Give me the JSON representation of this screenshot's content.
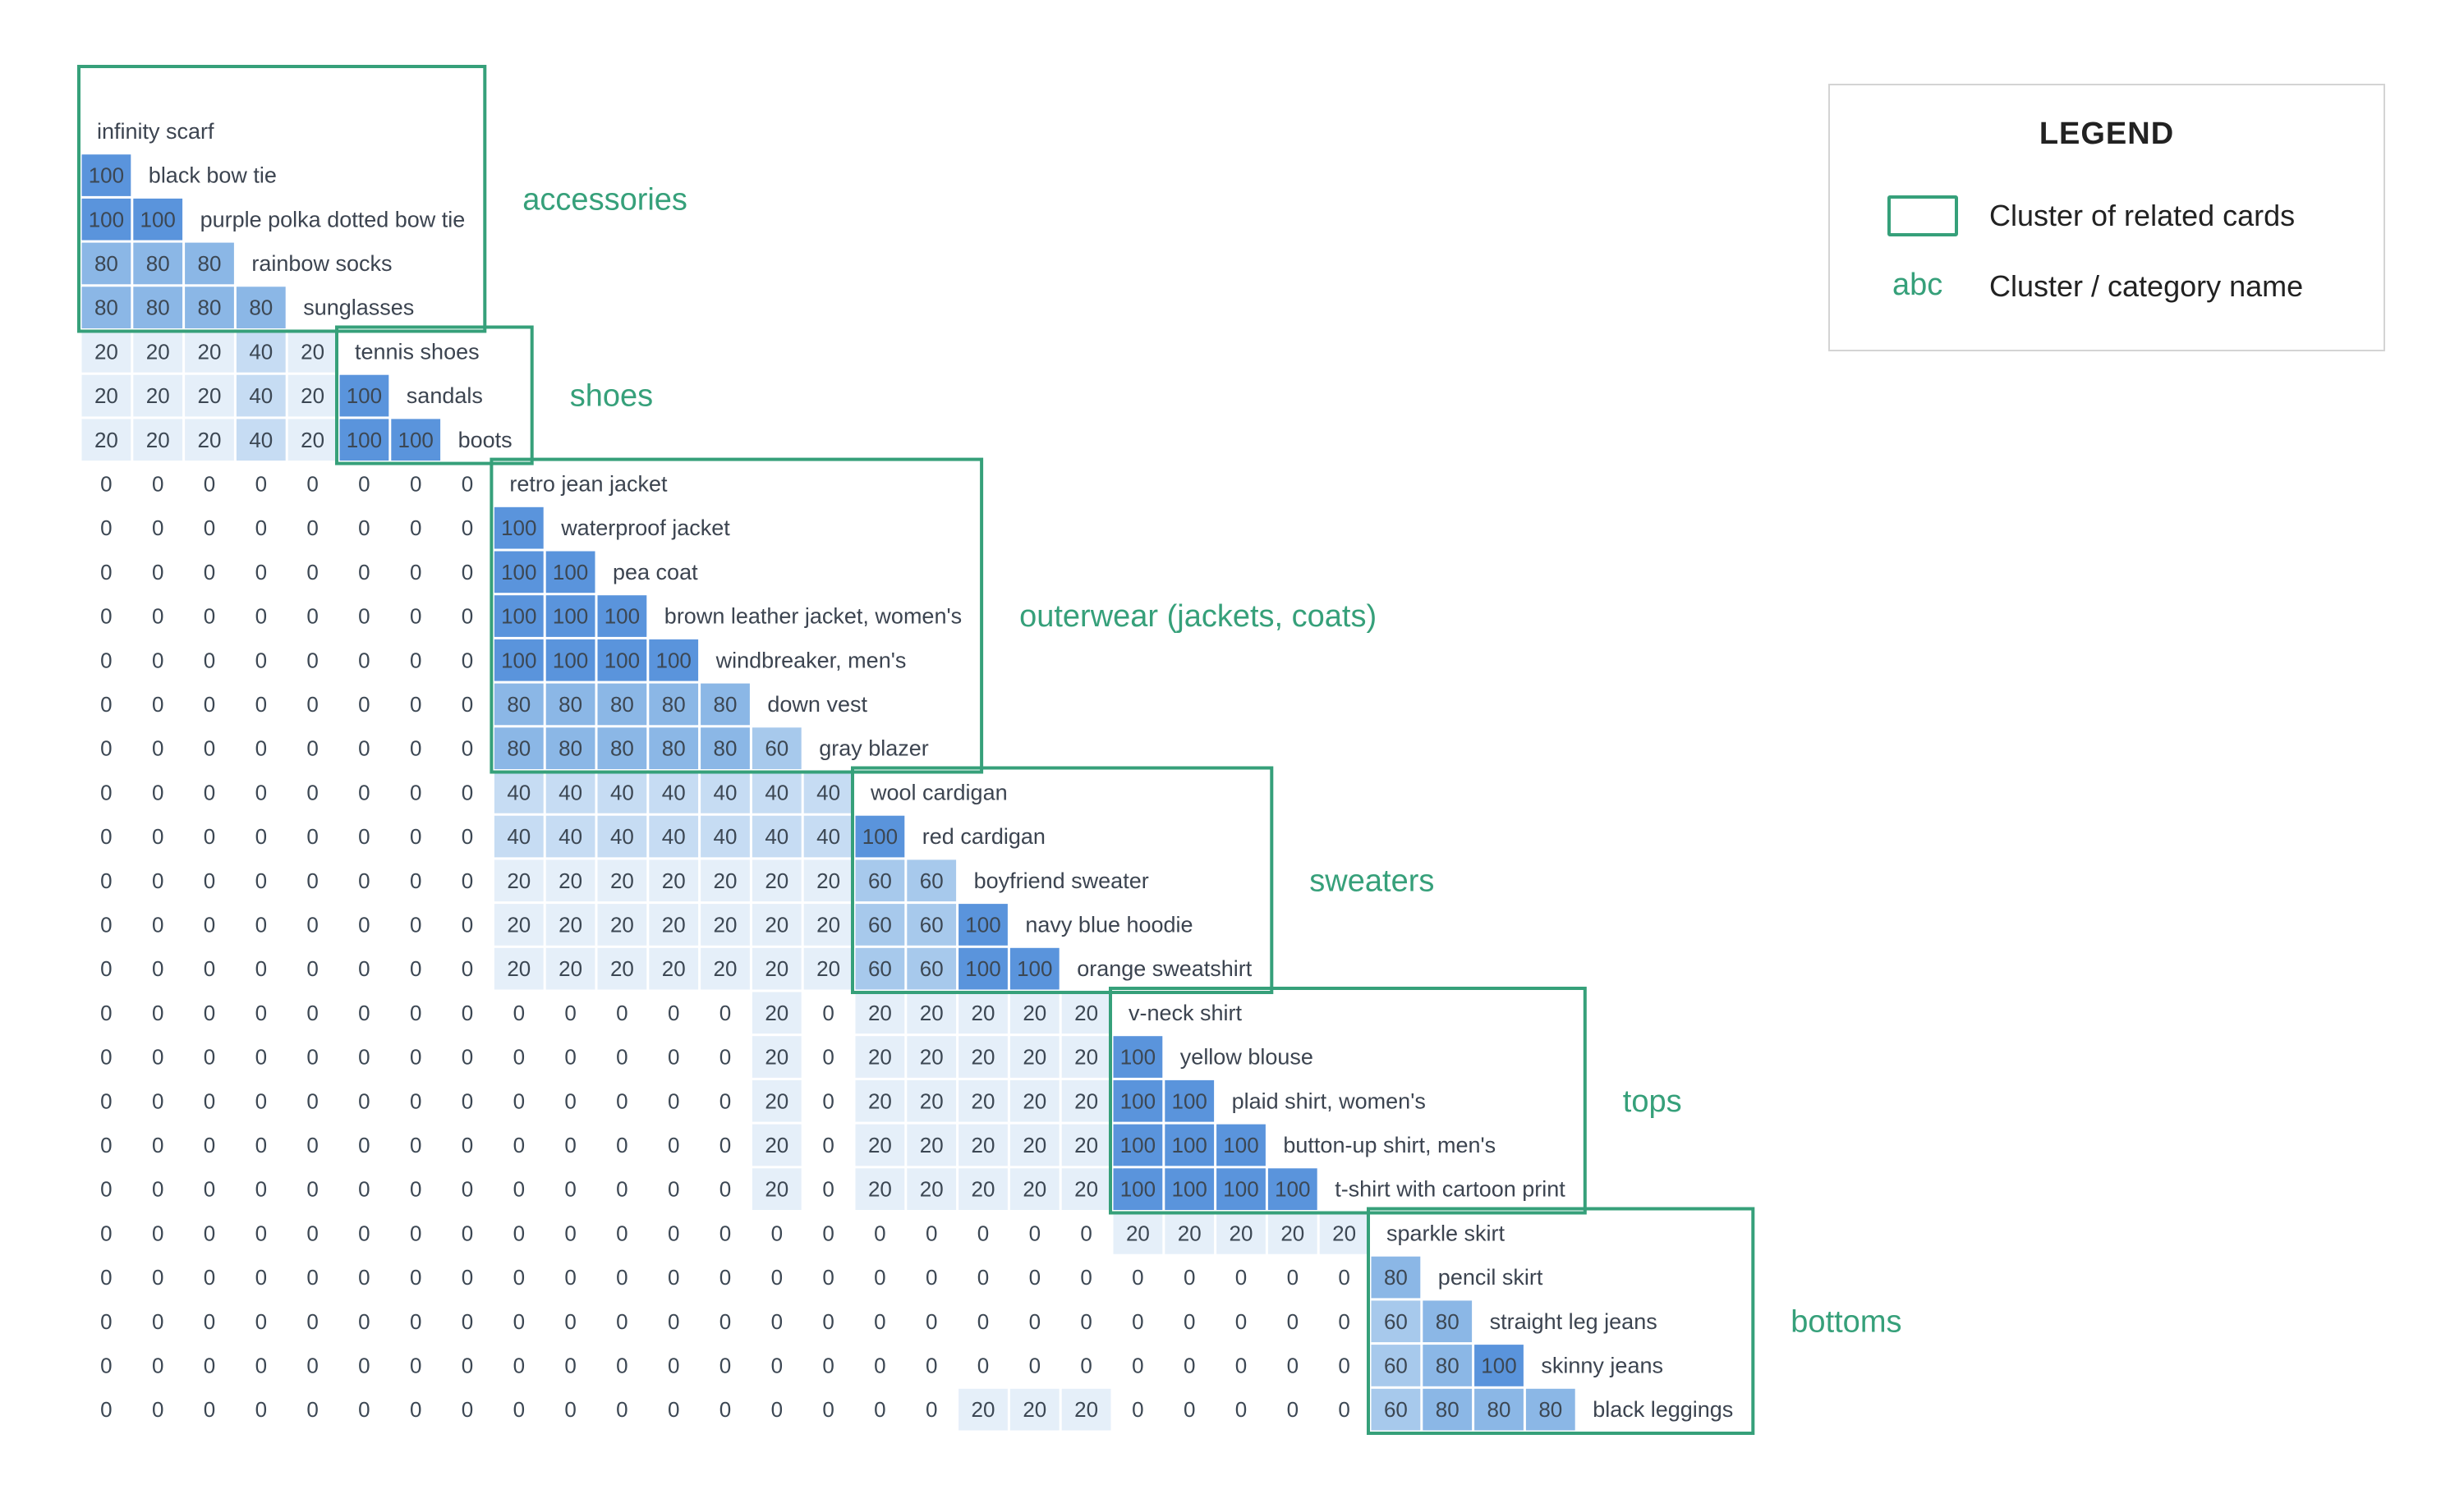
{
  "legend": {
    "title": "LEGEND",
    "box_label": "Cluster of related cards",
    "abc": "abc",
    "name_label": "Cluster / category name"
  },
  "colors": {
    "cluster": "#36a07a",
    "scale": {
      "0": "#ffffff",
      "20": "#e5eff9",
      "40": "#c6dcf3",
      "60": "#a7c9ec",
      "80": "#8bb7e6",
      "100": "#5a94dc"
    },
    "number_text": "#3c4753",
    "label_text": "#3c4450"
  },
  "chart_data": {
    "type": "heatmap",
    "title": "",
    "rows": [
      {
        "label": "infinity scarf",
        "values": []
      },
      {
        "label": "black bow tie",
        "values": [
          100
        ]
      },
      {
        "label": "purple polka dotted bow tie",
        "values": [
          100,
          100
        ]
      },
      {
        "label": "rainbow socks",
        "values": [
          80,
          80,
          80
        ]
      },
      {
        "label": "sunglasses",
        "values": [
          80,
          80,
          80,
          80
        ]
      },
      {
        "label": "tennis shoes",
        "values": [
          20,
          20,
          20,
          40,
          20
        ]
      },
      {
        "label": "sandals",
        "values": [
          20,
          20,
          20,
          40,
          20,
          100
        ]
      },
      {
        "label": "boots",
        "values": [
          20,
          20,
          20,
          40,
          20,
          100,
          100
        ]
      },
      {
        "label": "retro jean jacket",
        "values": [
          0,
          0,
          0,
          0,
          0,
          0,
          0,
          0
        ]
      },
      {
        "label": "waterproof jacket",
        "values": [
          0,
          0,
          0,
          0,
          0,
          0,
          0,
          0,
          100
        ]
      },
      {
        "label": "pea coat",
        "values": [
          0,
          0,
          0,
          0,
          0,
          0,
          0,
          0,
          100,
          100
        ]
      },
      {
        "label": "brown leather jacket, women's",
        "values": [
          0,
          0,
          0,
          0,
          0,
          0,
          0,
          0,
          100,
          100,
          100
        ]
      },
      {
        "label": "windbreaker, men's",
        "values": [
          0,
          0,
          0,
          0,
          0,
          0,
          0,
          0,
          100,
          100,
          100,
          100
        ]
      },
      {
        "label": "down vest",
        "values": [
          0,
          0,
          0,
          0,
          0,
          0,
          0,
          0,
          80,
          80,
          80,
          80,
          80
        ]
      },
      {
        "label": "gray blazer",
        "values": [
          0,
          0,
          0,
          0,
          0,
          0,
          0,
          0,
          80,
          80,
          80,
          80,
          80,
          60
        ]
      },
      {
        "label": "wool cardigan",
        "values": [
          0,
          0,
          0,
          0,
          0,
          0,
          0,
          0,
          40,
          40,
          40,
          40,
          40,
          40,
          40
        ]
      },
      {
        "label": "red cardigan",
        "values": [
          0,
          0,
          0,
          0,
          0,
          0,
          0,
          0,
          40,
          40,
          40,
          40,
          40,
          40,
          40,
          100
        ]
      },
      {
        "label": "boyfriend sweater",
        "values": [
          0,
          0,
          0,
          0,
          0,
          0,
          0,
          0,
          20,
          20,
          20,
          20,
          20,
          20,
          20,
          60,
          60
        ]
      },
      {
        "label": "navy blue hoodie",
        "values": [
          0,
          0,
          0,
          0,
          0,
          0,
          0,
          0,
          20,
          20,
          20,
          20,
          20,
          20,
          20,
          60,
          60,
          100
        ]
      },
      {
        "label": "orange sweatshirt",
        "values": [
          0,
          0,
          0,
          0,
          0,
          0,
          0,
          0,
          20,
          20,
          20,
          20,
          20,
          20,
          20,
          60,
          60,
          100,
          100
        ]
      },
      {
        "label": "v-neck shirt",
        "values": [
          0,
          0,
          0,
          0,
          0,
          0,
          0,
          0,
          0,
          0,
          0,
          0,
          0,
          20,
          0,
          20,
          20,
          20,
          20,
          20
        ]
      },
      {
        "label": "yellow blouse",
        "values": [
          0,
          0,
          0,
          0,
          0,
          0,
          0,
          0,
          0,
          0,
          0,
          0,
          0,
          20,
          0,
          20,
          20,
          20,
          20,
          20,
          100
        ]
      },
      {
        "label": "plaid shirt, women's",
        "values": [
          0,
          0,
          0,
          0,
          0,
          0,
          0,
          0,
          0,
          0,
          0,
          0,
          0,
          20,
          0,
          20,
          20,
          20,
          20,
          20,
          100,
          100
        ]
      },
      {
        "label": "button-up shirt, men's",
        "values": [
          0,
          0,
          0,
          0,
          0,
          0,
          0,
          0,
          0,
          0,
          0,
          0,
          0,
          20,
          0,
          20,
          20,
          20,
          20,
          20,
          100,
          100,
          100
        ]
      },
      {
        "label": "t-shirt with cartoon print",
        "values": [
          0,
          0,
          0,
          0,
          0,
          0,
          0,
          0,
          0,
          0,
          0,
          0,
          0,
          20,
          0,
          20,
          20,
          20,
          20,
          20,
          100,
          100,
          100,
          100
        ]
      },
      {
        "label": "sparkle skirt",
        "values": [
          0,
          0,
          0,
          0,
          0,
          0,
          0,
          0,
          0,
          0,
          0,
          0,
          0,
          0,
          0,
          0,
          0,
          0,
          0,
          0,
          20,
          20,
          20,
          20,
          20
        ]
      },
      {
        "label": "pencil skirt",
        "values": [
          0,
          0,
          0,
          0,
          0,
          0,
          0,
          0,
          0,
          0,
          0,
          0,
          0,
          0,
          0,
          0,
          0,
          0,
          0,
          0,
          0,
          0,
          0,
          0,
          0,
          80
        ]
      },
      {
        "label": "straight leg jeans",
        "values": [
          0,
          0,
          0,
          0,
          0,
          0,
          0,
          0,
          0,
          0,
          0,
          0,
          0,
          0,
          0,
          0,
          0,
          0,
          0,
          0,
          0,
          0,
          0,
          0,
          0,
          60,
          80
        ]
      },
      {
        "label": "skinny jeans",
        "values": [
          0,
          0,
          0,
          0,
          0,
          0,
          0,
          0,
          0,
          0,
          0,
          0,
          0,
          0,
          0,
          0,
          0,
          0,
          0,
          0,
          0,
          0,
          0,
          0,
          0,
          60,
          80,
          100
        ]
      },
      {
        "label": "black leggings",
        "values": [
          0,
          0,
          0,
          0,
          0,
          0,
          0,
          0,
          0,
          0,
          0,
          0,
          0,
          0,
          0,
          0,
          0,
          20,
          20,
          20,
          0,
          0,
          0,
          0,
          0,
          60,
          80,
          80,
          80
        ]
      }
    ],
    "clusters": [
      {
        "name": "accessories",
        "first_row": 0,
        "last_row": 4
      },
      {
        "name": "shoes",
        "first_row": 5,
        "last_row": 7
      },
      {
        "name": "outerwear (jackets, coats)",
        "first_row": 8,
        "last_row": 14
      },
      {
        "name": "sweaters",
        "first_row": 15,
        "last_row": 19
      },
      {
        "name": "tops",
        "first_row": 20,
        "last_row": 24
      },
      {
        "name": "bottoms",
        "first_row": 25,
        "last_row": 29
      }
    ],
    "value_levels": [
      0,
      20,
      40,
      60,
      80,
      100
    ],
    "legend_position": "top-right"
  }
}
